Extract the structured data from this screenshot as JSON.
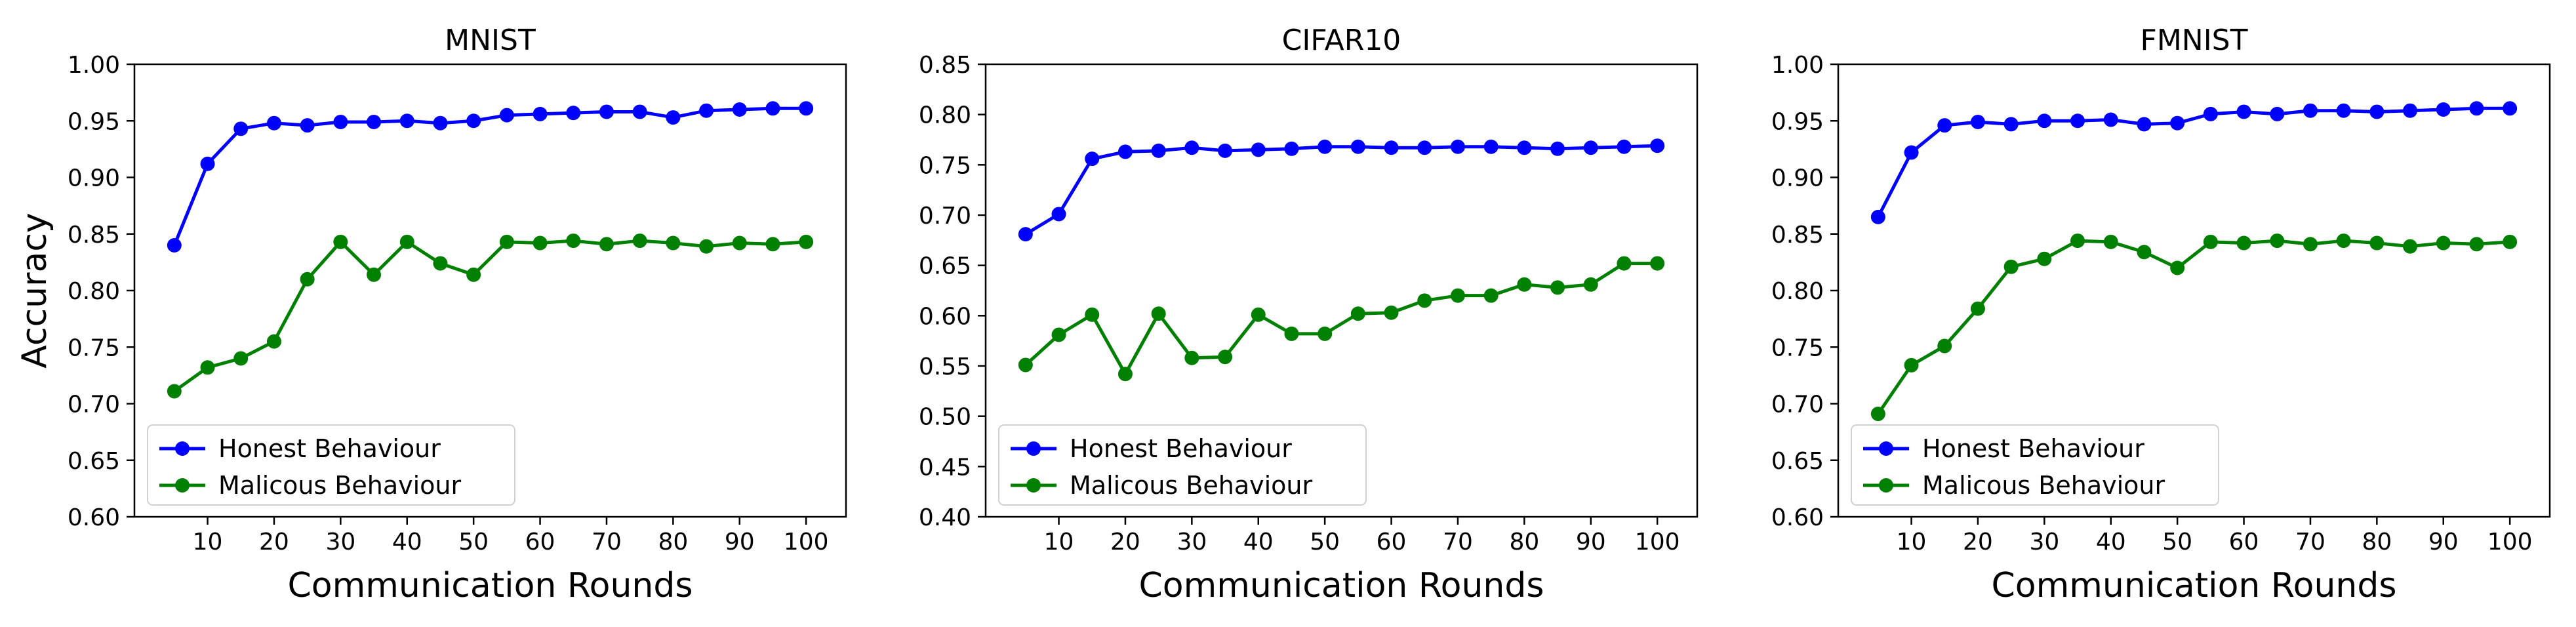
{
  "chart_data": [
    {
      "type": "line",
      "title": "MNIST",
      "xlabel": "Communication Rounds",
      "ylabel": "Accuracy",
      "x": [
        5,
        10,
        15,
        20,
        25,
        30,
        35,
        40,
        45,
        50,
        55,
        60,
        65,
        70,
        75,
        80,
        85,
        90,
        95,
        100
      ],
      "xticks": [
        10,
        20,
        30,
        40,
        50,
        60,
        70,
        80,
        90,
        100
      ],
      "xlim": [
        -1,
        106
      ],
      "ylim": [
        0.6,
        1.0
      ],
      "yticks": [
        "0.60",
        "0.65",
        "0.70",
        "0.75",
        "0.80",
        "0.85",
        "0.90",
        "0.95",
        "1.00"
      ],
      "legend_position": "lower-left",
      "series": [
        {
          "name": "Honest Behaviour",
          "color": "#0000ff",
          "values": [
            0.84,
            0.912,
            0.943,
            0.948,
            0.946,
            0.949,
            0.949,
            0.95,
            0.948,
            0.95,
            0.955,
            0.956,
            0.957,
            0.958,
            0.958,
            0.953,
            0.959,
            0.96,
            0.961,
            0.961
          ]
        },
        {
          "name": "Malicous Behaviour",
          "color": "#008000",
          "values": [
            0.711,
            0.732,
            0.74,
            0.755,
            0.81,
            0.843,
            0.814,
            0.843,
            0.824,
            0.814,
            0.843,
            0.842,
            0.844,
            0.841,
            0.844,
            0.842,
            0.839,
            0.842,
            0.841,
            0.843
          ]
        }
      ]
    },
    {
      "type": "line",
      "title": "CIFAR10",
      "xlabel": "Communication Rounds",
      "ylabel": "",
      "x": [
        5,
        10,
        15,
        20,
        25,
        30,
        35,
        40,
        45,
        50,
        55,
        60,
        65,
        70,
        75,
        80,
        85,
        90,
        95,
        100
      ],
      "xticks": [
        10,
        20,
        30,
        40,
        50,
        60,
        70,
        80,
        90,
        100
      ],
      "xlim": [
        -1,
        106
      ],
      "ylim": [
        0.4,
        0.85
      ],
      "yticks": [
        "0.40",
        "0.45",
        "0.50",
        "0.55",
        "0.60",
        "0.65",
        "0.70",
        "0.75",
        "0.80",
        "0.85"
      ],
      "legend_position": "lower-left",
      "series": [
        {
          "name": "Honest Behaviour",
          "color": "#0000ff",
          "values": [
            0.681,
            0.701,
            0.756,
            0.763,
            0.764,
            0.767,
            0.764,
            0.765,
            0.766,
            0.768,
            0.768,
            0.767,
            0.767,
            0.768,
            0.768,
            0.767,
            0.766,
            0.767,
            0.768,
            0.769
          ]
        },
        {
          "name": "Malicous Behaviour",
          "color": "#008000",
          "values": [
            0.551,
            0.581,
            0.601,
            0.542,
            0.602,
            0.558,
            0.559,
            0.601,
            0.582,
            0.582,
            0.602,
            0.603,
            0.615,
            0.62,
            0.62,
            0.631,
            0.628,
            0.631,
            0.652,
            0.652
          ]
        }
      ]
    },
    {
      "type": "line",
      "title": "FMNIST",
      "xlabel": "Communication Rounds",
      "ylabel": "",
      "x": [
        5,
        10,
        15,
        20,
        25,
        30,
        35,
        40,
        45,
        50,
        55,
        60,
        65,
        70,
        75,
        80,
        85,
        90,
        95,
        100
      ],
      "xticks": [
        10,
        20,
        30,
        40,
        50,
        60,
        70,
        80,
        90,
        100
      ],
      "xlim": [
        -1,
        106
      ],
      "ylim": [
        0.6,
        1.0
      ],
      "yticks": [
        "0.60",
        "0.65",
        "0.70",
        "0.75",
        "0.80",
        "0.85",
        "0.90",
        "0.95",
        "1.00"
      ],
      "legend_position": "lower-left",
      "series": [
        {
          "name": "Honest Behaviour",
          "color": "#0000ff",
          "values": [
            0.865,
            0.922,
            0.946,
            0.949,
            0.947,
            0.95,
            0.95,
            0.951,
            0.947,
            0.948,
            0.956,
            0.958,
            0.956,
            0.959,
            0.959,
            0.958,
            0.959,
            0.96,
            0.961,
            0.961
          ]
        },
        {
          "name": "Malicous Behaviour",
          "color": "#008000",
          "values": [
            0.691,
            0.734,
            0.751,
            0.784,
            0.821,
            0.828,
            0.844,
            0.843,
            0.834,
            0.82,
            0.843,
            0.842,
            0.844,
            0.841,
            0.844,
            0.842,
            0.839,
            0.842,
            0.841,
            0.843
          ]
        }
      ]
    }
  ]
}
